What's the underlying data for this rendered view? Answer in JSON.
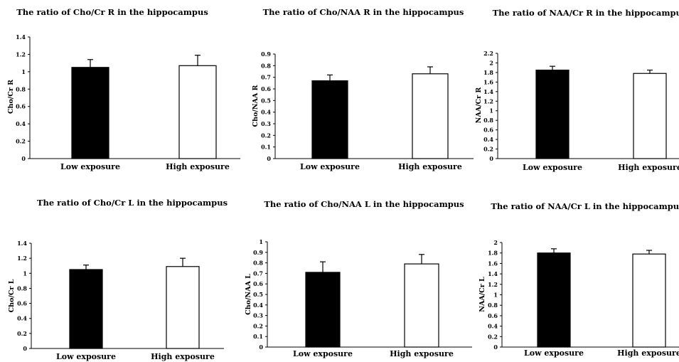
{
  "chart_data": [
    {
      "type": "bar",
      "title": "The ratio of Cho/Cr R in the hippocampus",
      "xlabel": "",
      "ylabel": "Cho/Cr R",
      "categories": [
        "Low exposure",
        "High exposure"
      ],
      "values": [
        1.05,
        1.07
      ],
      "errors": [
        0.09,
        0.12
      ],
      "bar_colors": [
        "#000000",
        "#ffffff"
      ],
      "ylim": [
        0,
        1.4
      ],
      "yticks": [
        "0",
        "0.2",
        "0.4",
        "0.6",
        "0.8",
        "1",
        "1.2",
        "1.4"
      ],
      "grid": false
    },
    {
      "type": "bar",
      "title": "The ratio of Cho/NAA R in the hippocampus",
      "xlabel": "",
      "ylabel": "Cho/NAA R",
      "categories": [
        "Low exposure",
        "High exposure"
      ],
      "values": [
        0.67,
        0.73
      ],
      "errors": [
        0.05,
        0.06
      ],
      "bar_colors": [
        "#000000",
        "#ffffff"
      ],
      "ylim": [
        0,
        0.9
      ],
      "yticks": [
        "0",
        "0.1",
        "0.2",
        "0.3",
        "0.4",
        "0.5",
        "0.6",
        "0.7",
        "0.8",
        "0.9"
      ],
      "grid": false
    },
    {
      "type": "bar",
      "title": "The ratio of NAA/Cr R in the hippocampus",
      "xlabel": "",
      "ylabel": "NAA/Cr R",
      "categories": [
        "Low exposure",
        "High exposure"
      ],
      "values": [
        1.85,
        1.78
      ],
      "errors": [
        0.08,
        0.07
      ],
      "bar_colors": [
        "#000000",
        "#ffffff"
      ],
      "ylim": [
        0,
        2.2
      ],
      "yticks": [
        "0",
        "0.2",
        "0.4",
        "0.6",
        "0.8",
        "1",
        "1.2",
        "1.4",
        "1.6",
        "1.8",
        "2",
        "2.2"
      ],
      "grid": false
    },
    {
      "type": "bar",
      "title": "The ratio of Cho/Cr L in the hippocampus",
      "xlabel": "",
      "ylabel": "Cho/Cr L",
      "categories": [
        "Low exposure",
        "High exposure"
      ],
      "values": [
        1.05,
        1.09
      ],
      "errors": [
        0.06,
        0.11
      ],
      "bar_colors": [
        "#000000",
        "#ffffff"
      ],
      "ylim": [
        0,
        1.4
      ],
      "yticks": [
        "0",
        "0.2",
        "0.4",
        "0.6",
        "0.8",
        "1",
        "1.2",
        "1.4"
      ],
      "grid": false
    },
    {
      "type": "bar",
      "title": "The ratio of Cho/NAA L in the hippocampus",
      "xlabel": "",
      "ylabel": "Cho/NAA L",
      "categories": [
        "Low exposure",
        "High exposure"
      ],
      "values": [
        0.71,
        0.79
      ],
      "errors": [
        0.1,
        0.09
      ],
      "bar_colors": [
        "#000000",
        "#ffffff"
      ],
      "ylim": [
        0,
        1
      ],
      "yticks": [
        "0",
        "0.1",
        "0.2",
        "0.3",
        "0.4",
        "0.5",
        "0.6",
        "0.7",
        "0.8",
        "0.9",
        "1"
      ],
      "grid": false
    },
    {
      "type": "bar",
      "title": "The ratio of NAA/Cr L in the hippocampus",
      "xlabel": "",
      "ylabel": "NAA/Cr L",
      "categories": [
        "Low exposure",
        "High exposure"
      ],
      "values": [
        1.8,
        1.78
      ],
      "errors": [
        0.08,
        0.07
      ],
      "bar_colors": [
        "#000000",
        "#ffffff"
      ],
      "ylim": [
        0,
        2
      ],
      "yticks": [
        "0",
        "0.2",
        "0.4",
        "0.6",
        "0.8",
        "1",
        "1.2",
        "1.4",
        "1.6",
        "1.8",
        "2"
      ],
      "grid": false
    }
  ]
}
